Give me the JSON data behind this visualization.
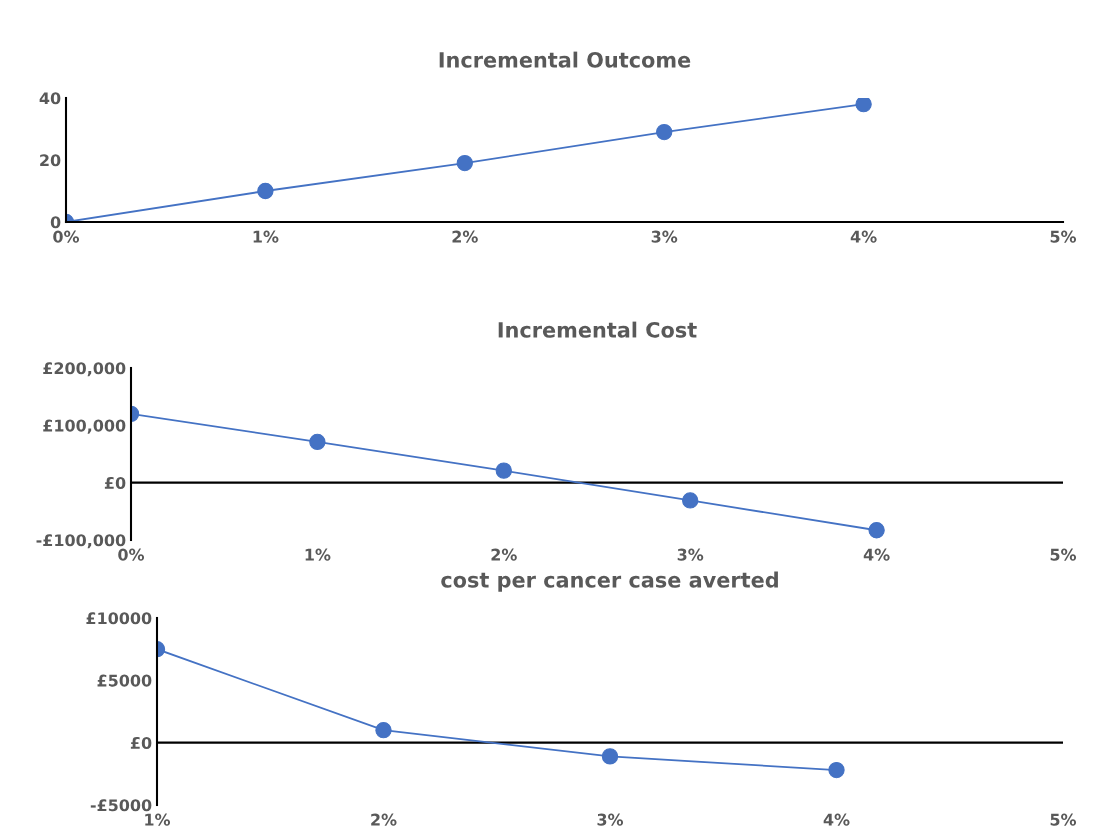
{
  "chart_data": [
    {
      "type": "line",
      "title": "Incremental Outcome",
      "x": [
        0,
        1,
        2,
        3,
        4
      ],
      "series": [
        {
          "color": "#4472c4",
          "values": [
            0,
            10,
            19,
            29,
            38
          ]
        }
      ],
      "xlim": [
        0,
        5
      ],
      "xticks": [
        {
          "value": 0,
          "label": "0%"
        },
        {
          "value": 1,
          "label": "1%"
        },
        {
          "value": 2,
          "label": "2%"
        },
        {
          "value": 3,
          "label": "3%"
        },
        {
          "value": 4,
          "label": "4%"
        },
        {
          "value": 5,
          "label": "5%"
        }
      ],
      "ylim": [
        0,
        40
      ],
      "yticks": [
        0,
        20,
        40
      ],
      "marker": "circle",
      "grid": false,
      "legend": false
    },
    {
      "type": "line",
      "title": "Incremental Cost",
      "x": [
        0,
        1,
        2,
        3,
        4
      ],
      "series": [
        {
          "color": "#4472c4",
          "values": [
            120000,
            71000,
            21000,
            -31000,
            -83000
          ]
        }
      ],
      "xlim": [
        0,
        5
      ],
      "xticks": [
        {
          "value": 0,
          "label": "0%"
        },
        {
          "value": 1,
          "label": "1%"
        },
        {
          "value": 2,
          "label": "2%"
        },
        {
          "value": 3,
          "label": "3%"
        },
        {
          "value": 4,
          "label": "4%"
        },
        {
          "value": 5,
          "label": "5%"
        }
      ],
      "ylim": [
        -100000,
        200000
      ],
      "yticks": [
        {
          "value": -100000,
          "label": "-£100,000"
        },
        {
          "value": 0,
          "label": "£0"
        },
        {
          "value": 100000,
          "label": "£100,000"
        },
        {
          "value": 200000,
          "label": "£200,000"
        }
      ],
      "ref_lines": [
        {
          "axis": "y",
          "value": 0,
          "color": "#000000"
        }
      ],
      "marker": "circle",
      "legend": false
    },
    {
      "type": "line",
      "title": "cost per cancer case averted",
      "x": [
        1,
        2,
        3,
        4
      ],
      "series": [
        {
          "color": "#4472c4",
          "values": [
            7500,
            1000,
            -1100,
            -2200
          ]
        }
      ],
      "xlim": [
        1,
        5
      ],
      "xticks": [
        {
          "value": 1,
          "label": "1%"
        },
        {
          "value": 2,
          "label": "2%"
        },
        {
          "value": 3,
          "label": "3%"
        },
        {
          "value": 4,
          "label": "4%"
        },
        {
          "value": 5,
          "label": "5%"
        }
      ],
      "ylim": [
        -5000,
        10000
      ],
      "yticks": [
        {
          "value": -5000,
          "label": "-£5000"
        },
        {
          "value": 0,
          "label": "£0"
        },
        {
          "value": 5000,
          "label": "£5000"
        },
        {
          "value": 10000,
          "label": "£10000"
        }
      ],
      "ref_lines": [
        {
          "axis": "y",
          "value": 0,
          "color": "#000000"
        }
      ],
      "marker": "circle",
      "legend": false
    }
  ]
}
